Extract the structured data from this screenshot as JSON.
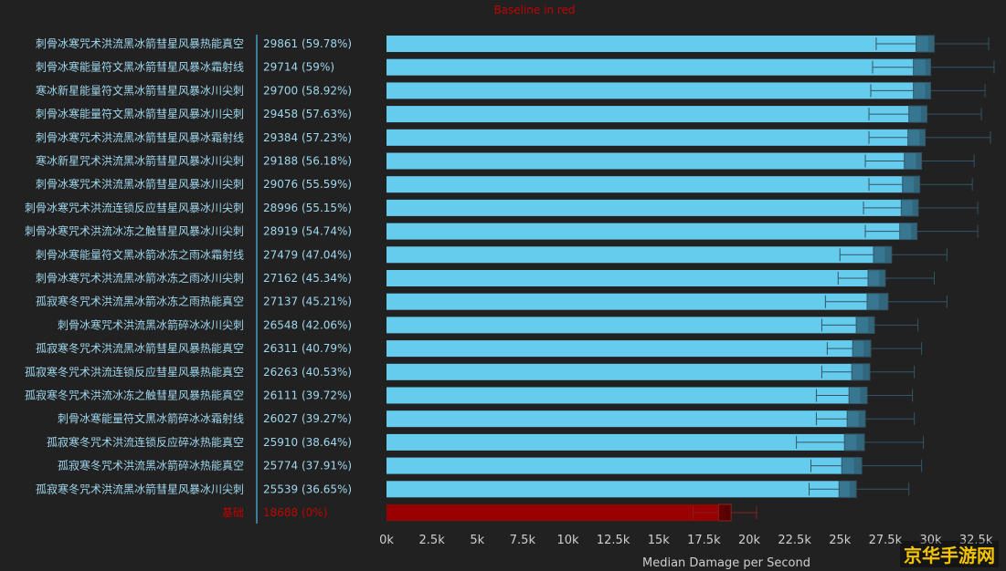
{
  "chart_data": {
    "type": "bar",
    "subtitle": "Baseline in red",
    "xlabel": "Median Damage per Second",
    "xlim": [
      0,
      32500
    ],
    "xticks": [
      "0k",
      "2.5k",
      "5k",
      "7.5k",
      "10k",
      "12.5k",
      "15k",
      "17.5k",
      "20k",
      "22.5k",
      "25k",
      "27.5k",
      "30k",
      "32.5k"
    ],
    "colors": {
      "bar": "#66ccee",
      "bar_box": "#336e86",
      "baseline_bar": "#990000",
      "baseline_box": "#5a0000",
      "axis": "#3d7d99",
      "whisker": "#335566",
      "baseline_whisker": "#882222"
    },
    "rows": [
      {
        "name": "刺骨冰寒咒术洪流黑冰箭彗星风暴热能真空",
        "label": "29861 (59.78%)",
        "value": 29861,
        "range": [
          27000,
          33200
        ],
        "box": [
          29200,
          30200
        ]
      },
      {
        "name": "刺骨冰寒能量符文黑冰箭彗星风暴冰霜射线",
        "label": "29714 (59%)",
        "value": 29714,
        "range": [
          26800,
          33500
        ],
        "box": [
          29050,
          30000
        ]
      },
      {
        "name": "寒冰新星能量符文黑冰箭彗星风暴冰川尖刺",
        "label": "29700 (58.92%)",
        "value": 29700,
        "range": [
          26700,
          33000
        ],
        "box": [
          29050,
          30000
        ]
      },
      {
        "name": "刺骨冰寒能量符文黑冰箭彗星风暴冰川尖刺",
        "label": "29458 (57.63%)",
        "value": 29458,
        "range": [
          26600,
          32800
        ],
        "box": [
          28800,
          29800
        ]
      },
      {
        "name": "刺骨冰寒咒术洪流黑冰箭彗星风暴冰霜射线",
        "label": "29384 (57.23%)",
        "value": 29384,
        "range": [
          26600,
          33300
        ],
        "box": [
          28750,
          29700
        ]
      },
      {
        "name": "寒冰新星咒术洪流黑冰箭彗星风暴冰川尖刺",
        "label": "29188 (56.18%)",
        "value": 29188,
        "range": [
          26400,
          32400
        ],
        "box": [
          28550,
          29500
        ]
      },
      {
        "name": "刺骨冰寒咒术洪流黑冰箭彗星风暴冰川尖刺",
        "label": "29076 (55.59%)",
        "value": 29076,
        "range": [
          26600,
          32300
        ],
        "box": [
          28450,
          29400
        ]
      },
      {
        "name": "刺骨冰寒咒术洪流连锁反应彗星风暴冰川尖刺",
        "label": "28996 (55.15%)",
        "value": 28996,
        "range": [
          26300,
          32600
        ],
        "box": [
          28380,
          29320
        ]
      },
      {
        "name": "刺骨冰寒咒术洪流冰冻之触彗星风暴冰川尖刺",
        "label": "28919 (54.74%)",
        "value": 28919,
        "range": [
          26400,
          32600
        ],
        "box": [
          28300,
          29250
        ]
      },
      {
        "name": "刺骨冰寒能量符文黑冰箭冰冻之雨冰霜射线",
        "label": "27479 (47.04%)",
        "value": 27479,
        "range": [
          25000,
          30900
        ],
        "box": [
          26850,
          27850
        ]
      },
      {
        "name": "刺骨冰寒咒术洪流黑冰箭冰冻之雨冰川尖刺",
        "label": "27162 (45.34%)",
        "value": 27162,
        "range": [
          24900,
          30200
        ],
        "box": [
          26550,
          27500
        ]
      },
      {
        "name": "孤寂寒冬咒术洪流黑冰箭冰冻之雨热能真空",
        "label": "27137 (45.21%)",
        "value": 27137,
        "range": [
          24200,
          30900
        ],
        "box": [
          26500,
          27650
        ]
      },
      {
        "name": "刺骨冰寒咒术洪流黑冰箭碎冰冰川尖刺",
        "label": "26548 (42.06%)",
        "value": 26548,
        "range": [
          24000,
          29300
        ],
        "box": [
          25900,
          26900
        ]
      },
      {
        "name": "孤寂寒冬咒术洪流黑冰箭彗星风暴热能真空",
        "label": "26311 (40.79%)",
        "value": 26311,
        "range": [
          24300,
          29500
        ],
        "box": [
          25700,
          26700
        ]
      },
      {
        "name": "孤寂寒冬咒术洪流连锁反应彗星风暴热能真空",
        "label": "26263 (40.53%)",
        "value": 26263,
        "range": [
          24000,
          29100
        ],
        "box": [
          25650,
          26650
        ]
      },
      {
        "name": "孤寂寒冬咒术洪流冰冻之触彗星风暴热能真空",
        "label": "26111 (39.72%)",
        "value": 26111,
        "range": [
          23700,
          29000
        ],
        "box": [
          25500,
          26500
        ]
      },
      {
        "name": "刺骨冰寒能量符文黑冰箭碎冰冰霜射线",
        "label": "26027 (39.27%)",
        "value": 26027,
        "range": [
          23700,
          29100
        ],
        "box": [
          25400,
          26400
        ]
      },
      {
        "name": "孤寂寒冬咒术洪流连锁反应碎冰热能真空",
        "label": "25910 (38.64%)",
        "value": 25910,
        "range": [
          22600,
          29600
        ],
        "box": [
          25250,
          26350
        ]
      },
      {
        "name": "孤寂寒冬咒术洪流黑冰箭碎冰热能真空",
        "label": "25774 (37.91%)",
        "value": 25774,
        "range": [
          23400,
          29500
        ],
        "box": [
          25100,
          26200
        ]
      },
      {
        "name": "孤寂寒冬咒术洪流黑冰箭彗星风暴冰川尖刺",
        "label": "25539 (36.65%)",
        "value": 25539,
        "range": [
          23300,
          28800
        ],
        "box": [
          24950,
          25900
        ]
      },
      {
        "name": "基础",
        "label": "18688 (0%)",
        "value": 18688,
        "range": [
          16900,
          20400
        ],
        "box": [
          18300,
          19000
        ],
        "baseline": true
      }
    ]
  },
  "watermark": "京华手游网"
}
